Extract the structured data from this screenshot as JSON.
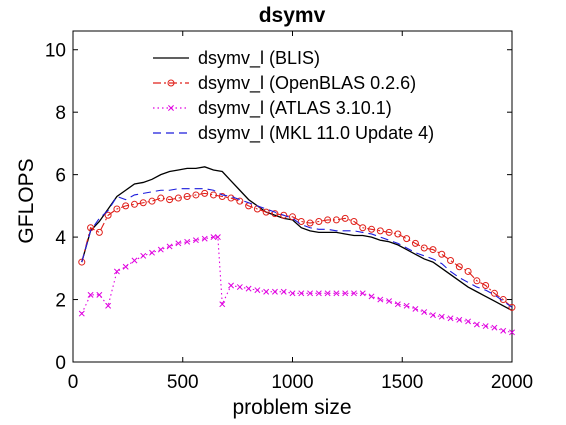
{
  "chart_data": {
    "type": "line",
    "title": "dsymv",
    "xlabel": "problem size",
    "ylabel": "GFLOPS",
    "xlim": [
      0,
      2000
    ],
    "ylim": [
      0,
      10.6
    ],
    "xticks": [
      0,
      500,
      1000,
      1500,
      2000
    ],
    "yticks": [
      0,
      2,
      4,
      6,
      8,
      10
    ],
    "grid": false,
    "legend_position": "top",
    "series": [
      {
        "name": "dsymv_l (BLIS)",
        "color": "#000000",
        "style": "solid",
        "marker": "none",
        "x": [
          40,
          80,
          120,
          160,
          200,
          240,
          280,
          320,
          360,
          400,
          440,
          480,
          520,
          560,
          600,
          640,
          680,
          720,
          760,
          800,
          840,
          880,
          920,
          960,
          1000,
          1040,
          1080,
          1120,
          1160,
          1200,
          1240,
          1280,
          1320,
          1360,
          1400,
          1440,
          1480,
          1520,
          1560,
          1600,
          1640,
          1680,
          1720,
          1760,
          1800,
          1840,
          1880,
          1920,
          1960,
          2000
        ],
        "y": [
          3.2,
          4.2,
          4.5,
          4.9,
          5.3,
          5.5,
          5.7,
          5.75,
          5.85,
          6.0,
          6.1,
          6.15,
          6.2,
          6.2,
          6.25,
          6.15,
          6.1,
          5.8,
          5.5,
          5.2,
          5.0,
          4.8,
          4.7,
          4.6,
          4.55,
          4.3,
          4.2,
          4.15,
          4.15,
          4.15,
          4.1,
          4.05,
          4.05,
          4.0,
          3.9,
          3.85,
          3.75,
          3.6,
          3.45,
          3.3,
          3.2,
          3.0,
          2.8,
          2.6,
          2.4,
          2.25,
          2.1,
          1.95,
          1.8,
          1.65
        ]
      },
      {
        "name": "dsymv_l (OpenBLAS 0.2.6)",
        "color": "#e0201a",
        "style": "dashdot",
        "marker": "o",
        "x": [
          40,
          80,
          120,
          160,
          200,
          240,
          280,
          320,
          360,
          400,
          440,
          480,
          520,
          560,
          600,
          640,
          680,
          720,
          760,
          800,
          840,
          880,
          920,
          960,
          1000,
          1040,
          1080,
          1120,
          1160,
          1200,
          1240,
          1280,
          1320,
          1360,
          1400,
          1440,
          1480,
          1520,
          1560,
          1600,
          1640,
          1680,
          1720,
          1760,
          1800,
          1840,
          1880,
          1920,
          1960,
          2000
        ],
        "y": [
          3.2,
          4.3,
          4.15,
          4.7,
          4.9,
          5.0,
          5.05,
          5.1,
          5.15,
          5.25,
          5.2,
          5.25,
          5.3,
          5.35,
          5.4,
          5.35,
          5.3,
          5.25,
          5.15,
          5.0,
          4.9,
          4.8,
          4.75,
          4.7,
          4.65,
          4.5,
          4.45,
          4.5,
          4.55,
          4.55,
          4.6,
          4.5,
          4.3,
          4.25,
          4.2,
          4.15,
          4.1,
          3.95,
          3.8,
          3.65,
          3.6,
          3.45,
          3.25,
          3.05,
          2.9,
          2.6,
          2.45,
          2.2,
          2.0,
          1.75
        ]
      },
      {
        "name": "dsymv_l (ATLAS 3.10.1)",
        "color": "#e000e0",
        "style": "dotted",
        "marker": "x",
        "x": [
          40,
          80,
          120,
          160,
          200,
          240,
          280,
          320,
          360,
          400,
          440,
          480,
          520,
          560,
          600,
          640,
          660,
          680,
          720,
          760,
          800,
          840,
          880,
          920,
          960,
          1000,
          1040,
          1080,
          1120,
          1160,
          1200,
          1240,
          1280,
          1320,
          1360,
          1400,
          1440,
          1480,
          1520,
          1560,
          1600,
          1640,
          1680,
          1720,
          1760,
          1800,
          1840,
          1880,
          1920,
          1960,
          2000
        ],
        "y": [
          1.55,
          2.15,
          2.15,
          1.8,
          2.9,
          3.05,
          3.25,
          3.4,
          3.5,
          3.6,
          3.7,
          3.8,
          3.85,
          3.9,
          3.95,
          4.0,
          4.0,
          1.85,
          2.45,
          2.4,
          2.35,
          2.3,
          2.25,
          2.25,
          2.25,
          2.2,
          2.2,
          2.2,
          2.2,
          2.2,
          2.2,
          2.2,
          2.2,
          2.2,
          2.1,
          2.0,
          1.95,
          1.85,
          1.8,
          1.7,
          1.6,
          1.5,
          1.45,
          1.4,
          1.35,
          1.3,
          1.2,
          1.15,
          1.1,
          1.0,
          0.95
        ]
      },
      {
        "name": "dsymv_l (MKL 11.0 Update 4)",
        "color": "#1c1cdc",
        "style": "dashed",
        "marker": "none",
        "x": [
          40,
          80,
          120,
          160,
          200,
          240,
          280,
          320,
          360,
          400,
          440,
          480,
          520,
          560,
          600,
          640,
          680,
          720,
          760,
          800,
          840,
          880,
          920,
          960,
          1000,
          1040,
          1080,
          1120,
          1160,
          1200,
          1240,
          1280,
          1320,
          1360,
          1400,
          1440,
          1480,
          1520,
          1560,
          1600,
          1640,
          1680,
          1720,
          1760,
          1800,
          1840,
          1880,
          1920,
          1960,
          2000
        ],
        "y": [
          3.2,
          4.2,
          4.6,
          4.85,
          5.3,
          5.2,
          5.35,
          5.4,
          5.45,
          5.5,
          5.5,
          5.55,
          5.55,
          5.55,
          5.55,
          5.5,
          5.35,
          5.3,
          5.2,
          5.1,
          5.0,
          4.9,
          4.8,
          4.7,
          4.6,
          4.4,
          4.3,
          4.25,
          4.25,
          4.2,
          4.2,
          4.2,
          4.15,
          4.1,
          4.0,
          3.9,
          3.8,
          3.65,
          3.5,
          3.4,
          3.3,
          3.15,
          2.9,
          2.7,
          2.55,
          2.4,
          2.3,
          2.15,
          1.95,
          1.75
        ]
      }
    ]
  }
}
